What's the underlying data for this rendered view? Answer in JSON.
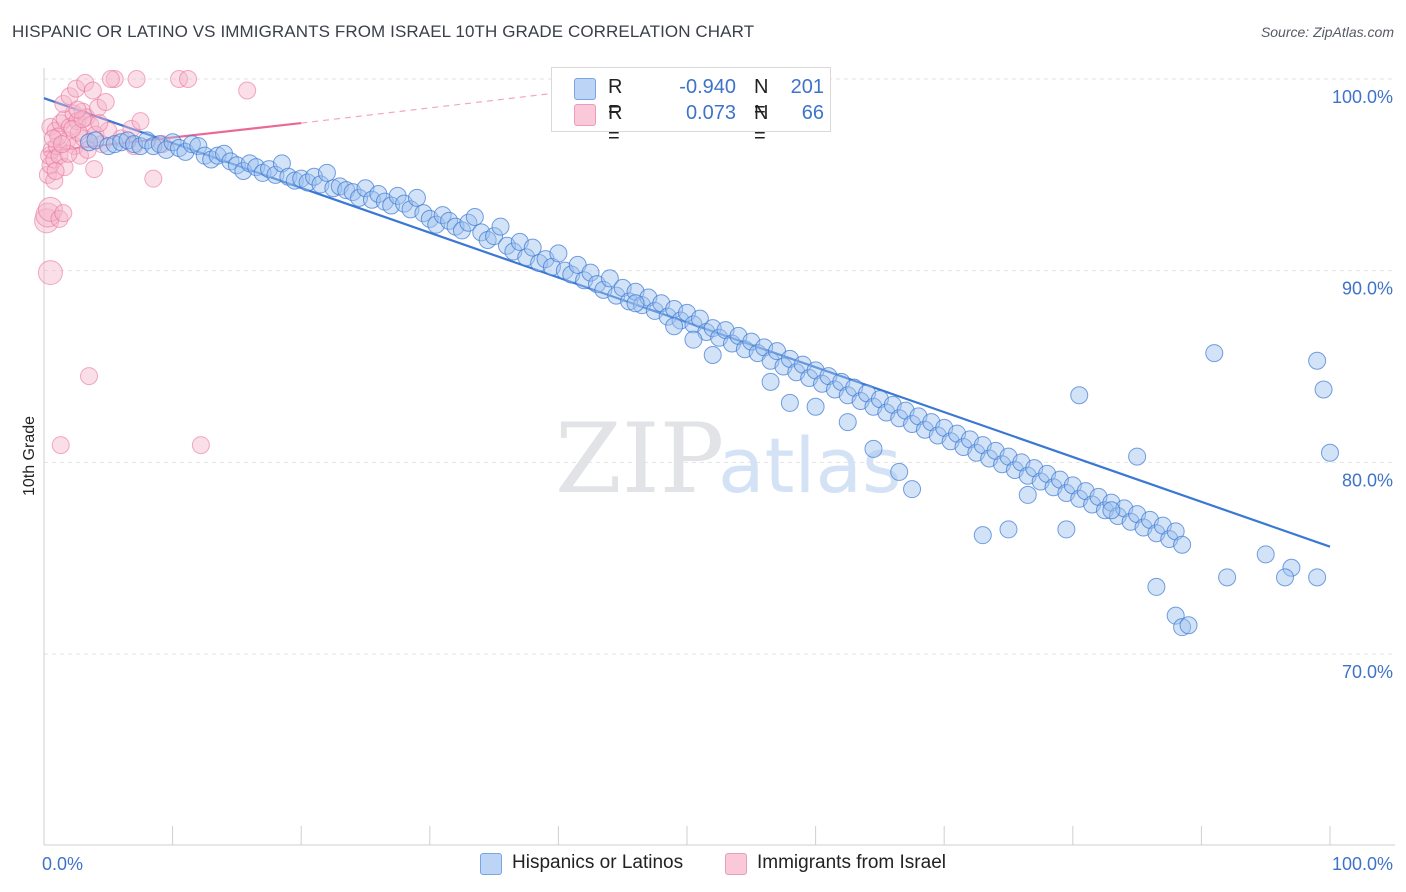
{
  "title": "HISPANIC OR LATINO VS IMMIGRANTS FROM ISRAEL 10TH GRADE CORRELATION CHART",
  "source": "Source: ZipAtlas.com",
  "watermark": {
    "zip": "ZIP",
    "atlas": "atlas"
  },
  "legend": {
    "r_label": "R =",
    "n_label": "N =",
    "rows": [
      {
        "name": "Hispanics or Latinos",
        "r": "-0.940",
        "n": "201",
        "color": "#8fb4ec"
      },
      {
        "name": "Immigrants from Israel",
        "r": "0.073",
        "n": "66",
        "color": "#f2a3be"
      }
    ]
  },
  "colors": {
    "blue": "#3a78d4",
    "blue_fill": "#9dc0ee",
    "pink": "#ea6a96",
    "pink_fill": "#f4b6cb",
    "tick_text": "#3f73c9"
  },
  "chart_data": {
    "type": "scatter",
    "title": "HISPANIC OR LATINO VS IMMIGRANTS FROM ISRAEL 10TH GRADE CORRELATION CHART",
    "xlabel": "",
    "ylabel": "10th Grade",
    "xlim": [
      0,
      100
    ],
    "ylim": [
      60,
      100
    ],
    "x_tick_labels": [
      "0.0%",
      "100.0%"
    ],
    "y_ticks": [
      70,
      80,
      90,
      100
    ],
    "y_tick_labels": [
      "70.0%",
      "80.0%",
      "90.0%",
      "100.0%"
    ],
    "grid": true,
    "legend_position": "top-center",
    "series": [
      {
        "name": "Hispanics or Latinos",
        "color": "#3a78d4",
        "r": -0.94,
        "n": 201,
        "trendline": {
          "x": [
            0,
            100
          ],
          "y": [
            99.0,
            75.6
          ]
        },
        "points": [
          [
            3.5,
            96.7
          ],
          [
            4,
            96.8
          ],
          [
            5,
            96.5
          ],
          [
            5.5,
            96.6
          ],
          [
            6,
            96.7
          ],
          [
            6.5,
            96.8
          ],
          [
            7,
            96.6
          ],
          [
            7.5,
            96.5
          ],
          [
            8,
            96.8
          ],
          [
            8.5,
            96.5
          ],
          [
            9,
            96.6
          ],
          [
            9.5,
            96.3
          ],
          [
            10,
            96.7
          ],
          [
            10.5,
            96.4
          ],
          [
            11,
            96.2
          ],
          [
            11.5,
            96.6
          ],
          [
            12,
            96.5
          ],
          [
            12.5,
            96.0
          ],
          [
            13,
            95.8
          ],
          [
            13.5,
            96.0
          ],
          [
            14,
            96.1
          ],
          [
            14.5,
            95.7
          ],
          [
            15,
            95.5
          ],
          [
            15.5,
            95.2
          ],
          [
            16,
            95.6
          ],
          [
            16.5,
            95.4
          ],
          [
            17,
            95.1
          ],
          [
            17.5,
            95.3
          ],
          [
            18,
            95.0
          ],
          [
            18.5,
            95.6
          ],
          [
            19,
            94.9
          ],
          [
            19.5,
            94.7
          ],
          [
            20,
            94.8
          ],
          [
            20.5,
            94.6
          ],
          [
            21,
            94.9
          ],
          [
            21.5,
            94.5
          ],
          [
            22,
            95.1
          ],
          [
            22.5,
            94.3
          ],
          [
            23,
            94.4
          ],
          [
            23.5,
            94.2
          ],
          [
            24,
            94.1
          ],
          [
            24.5,
            93.8
          ],
          [
            25,
            94.3
          ],
          [
            25.5,
            93.7
          ],
          [
            26,
            94.0
          ],
          [
            26.5,
            93.6
          ],
          [
            27,
            93.4
          ],
          [
            27.5,
            93.9
          ],
          [
            28,
            93.5
          ],
          [
            28.5,
            93.2
          ],
          [
            29,
            93.8
          ],
          [
            29.5,
            93.0
          ],
          [
            30,
            92.7
          ],
          [
            30.5,
            92.4
          ],
          [
            31,
            92.9
          ],
          [
            31.5,
            92.6
          ],
          [
            32,
            92.3
          ],
          [
            32.5,
            92.1
          ],
          [
            33,
            92.5
          ],
          [
            33.5,
            92.8
          ],
          [
            34,
            92.0
          ],
          [
            34.5,
            91.6
          ],
          [
            35,
            91.8
          ],
          [
            35.5,
            92.3
          ],
          [
            36,
            91.3
          ],
          [
            36.5,
            91.0
          ],
          [
            37,
            91.5
          ],
          [
            37.5,
            90.7
          ],
          [
            38,
            91.2
          ],
          [
            38.5,
            90.4
          ],
          [
            39,
            90.6
          ],
          [
            39.5,
            90.2
          ],
          [
            40,
            90.9
          ],
          [
            40.5,
            90.0
          ],
          [
            41,
            89.8
          ],
          [
            41.5,
            90.3
          ],
          [
            42,
            89.5
          ],
          [
            42.5,
            89.9
          ],
          [
            43,
            89.3
          ],
          [
            43.5,
            89.0
          ],
          [
            44,
            89.6
          ],
          [
            44.5,
            88.7
          ],
          [
            45,
            89.1
          ],
          [
            45.5,
            88.4
          ],
          [
            46,
            88.9
          ],
          [
            46.5,
            88.2
          ],
          [
            47,
            88.6
          ],
          [
            47.5,
            87.9
          ],
          [
            48,
            88.3
          ],
          [
            48.5,
            87.6
          ],
          [
            49,
            88.0
          ],
          [
            49.5,
            87.4
          ],
          [
            50,
            87.8
          ],
          [
            50.5,
            87.2
          ],
          [
            51,
            87.5
          ],
          [
            51.5,
            86.8
          ],
          [
            52,
            87.0
          ],
          [
            52.5,
            86.5
          ],
          [
            53,
            86.9
          ],
          [
            53.5,
            86.2
          ],
          [
            54,
            86.6
          ],
          [
            54.5,
            85.9
          ],
          [
            55,
            86.3
          ],
          [
            55.5,
            85.7
          ],
          [
            56,
            86.0
          ],
          [
            56.5,
            85.3
          ],
          [
            57,
            85.8
          ],
          [
            57.5,
            85.0
          ],
          [
            58,
            85.4
          ],
          [
            58.5,
            84.7
          ],
          [
            59,
            85.1
          ],
          [
            59.5,
            84.4
          ],
          [
            60,
            84.8
          ],
          [
            60.5,
            84.1
          ],
          [
            61,
            84.5
          ],
          [
            61.5,
            83.8
          ],
          [
            62,
            84.2
          ],
          [
            62.5,
            83.5
          ],
          [
            63,
            83.9
          ],
          [
            63.5,
            83.2
          ],
          [
            64,
            83.6
          ],
          [
            64.5,
            82.9
          ],
          [
            65,
            83.3
          ],
          [
            65.5,
            82.6
          ],
          [
            66,
            83.0
          ],
          [
            66.5,
            82.3
          ],
          [
            67,
            82.7
          ],
          [
            67.5,
            82.0
          ],
          [
            68,
            82.4
          ],
          [
            68.5,
            81.7
          ],
          [
            69,
            82.1
          ],
          [
            69.5,
            81.4
          ],
          [
            70,
            81.8
          ],
          [
            70.5,
            81.1
          ],
          [
            71,
            81.5
          ],
          [
            71.5,
            80.8
          ],
          [
            72,
            81.2
          ],
          [
            72.5,
            80.5
          ],
          [
            73,
            80.9
          ],
          [
            73.5,
            80.2
          ],
          [
            74,
            80.6
          ],
          [
            74.5,
            79.9
          ],
          [
            75,
            80.3
          ],
          [
            75.5,
            79.6
          ],
          [
            76,
            80.0
          ],
          [
            76.5,
            79.3
          ],
          [
            77,
            79.7
          ],
          [
            77.5,
            79.0
          ],
          [
            78,
            79.4
          ],
          [
            78.5,
            78.7
          ],
          [
            79,
            79.1
          ],
          [
            79.5,
            78.4
          ],
          [
            80,
            78.8
          ],
          [
            80.5,
            78.1
          ],
          [
            81,
            78.5
          ],
          [
            81.5,
            77.8
          ],
          [
            82,
            78.2
          ],
          [
            82.5,
            77.5
          ],
          [
            83,
            77.9
          ],
          [
            83.5,
            77.2
          ],
          [
            84,
            77.6
          ],
          [
            84.5,
            76.9
          ],
          [
            85,
            77.3
          ],
          [
            85.5,
            76.6
          ],
          [
            86,
            77.0
          ],
          [
            86.5,
            76.3
          ],
          [
            87,
            76.7
          ],
          [
            87.5,
            76.0
          ],
          [
            88,
            76.4
          ],
          [
            88.5,
            75.7
          ],
          [
            46,
            88.3
          ],
          [
            49,
            87.1
          ],
          [
            50.5,
            86.4
          ],
          [
            52,
            85.6
          ],
          [
            56.5,
            84.2
          ],
          [
            58,
            83.1
          ],
          [
            60,
            82.9
          ],
          [
            62.5,
            82.1
          ],
          [
            64.5,
            80.7
          ],
          [
            66.5,
            79.5
          ],
          [
            67.5,
            78.6
          ],
          [
            73,
            76.2
          ],
          [
            75,
            76.5
          ],
          [
            76.5,
            78.3
          ],
          [
            79.5,
            76.5
          ],
          [
            80.5,
            83.5
          ],
          [
            83,
            77.5
          ],
          [
            85,
            80.3
          ],
          [
            86.5,
            73.5
          ],
          [
            88,
            72.0
          ],
          [
            88.5,
            71.4
          ],
          [
            91,
            85.7
          ],
          [
            92,
            74.0
          ],
          [
            95,
            75.2
          ],
          [
            97,
            74.5
          ],
          [
            99,
            74.0
          ],
          [
            100,
            80.5
          ],
          [
            99.5,
            83.8
          ],
          [
            99,
            85.3
          ],
          [
            96.5,
            74.0
          ],
          [
            89,
            71.5
          ]
        ]
      },
      {
        "name": "Immigrants from Israel",
        "color": "#ea6a96",
        "r": 0.073,
        "n": 66,
        "trendline": {
          "x": [
            0,
            20
          ],
          "y": [
            96.2,
            97.7
          ],
          "dashed_extension_to": [
            44,
            99.6
          ]
        },
        "points": [
          [
            0.2,
            92.6
          ],
          [
            0.3,
            92.9
          ],
          [
            0.5,
            93.2
          ],
          [
            0.3,
            95.0
          ],
          [
            0.5,
            95.5
          ],
          [
            0.4,
            96.0
          ],
          [
            0.6,
            96.3
          ],
          [
            0.8,
            95.8
          ],
          [
            1,
            96.5
          ],
          [
            1.2,
            96.0
          ],
          [
            0.5,
            97.5
          ],
          [
            0.9,
            97.3
          ],
          [
            1.3,
            97.7
          ],
          [
            1.6,
            97.9
          ],
          [
            2,
            97.5
          ],
          [
            2.3,
            98.2
          ],
          [
            2.6,
            97.8
          ],
          [
            3,
            98.3
          ],
          [
            3.3,
            98.0
          ],
          [
            3.6,
            97.6
          ],
          [
            1.8,
            96.8
          ],
          [
            2.4,
            96.5
          ],
          [
            2.8,
            96.0
          ],
          [
            3.1,
            96.9
          ],
          [
            4,
            97.1
          ],
          [
            4.5,
            96.6
          ],
          [
            5,
            97.3
          ],
          [
            6,
            96.9
          ],
          [
            6.8,
            97.4
          ],
          [
            7,
            96.5
          ],
          [
            1.5,
            98.7
          ],
          [
            2,
            99.1
          ],
          [
            2.5,
            99.5
          ],
          [
            3.2,
            99.8
          ],
          [
            3.8,
            99.4
          ],
          [
            4.2,
            98.5
          ],
          [
            5.5,
            100
          ],
          [
            7.2,
            100
          ],
          [
            10.5,
            100
          ],
          [
            11.2,
            100
          ],
          [
            1.2,
            92.7
          ],
          [
            1.5,
            93.0
          ],
          [
            0.5,
            89.9
          ],
          [
            3.5,
            84.5
          ],
          [
            1.3,
            80.9
          ],
          [
            12.2,
            80.9
          ],
          [
            8.5,
            94.8
          ],
          [
            3.9,
            95.3
          ],
          [
            0.8,
            94.7
          ],
          [
            1.6,
            95.4
          ],
          [
            2.7,
            97.2
          ],
          [
            3.4,
            96.3
          ],
          [
            4.8,
            98.8
          ],
          [
            7.5,
            97.8
          ],
          [
            9.2,
            96.6
          ],
          [
            1.1,
            97.0
          ],
          [
            2.2,
            97.4
          ],
          [
            0.7,
            96.9
          ],
          [
            1.9,
            96.1
          ],
          [
            15.8,
            99.4
          ],
          [
            5.2,
            100
          ],
          [
            3.0,
            97.9
          ],
          [
            2.6,
            98.4
          ],
          [
            1.4,
            96.6
          ],
          [
            0.9,
            95.2
          ],
          [
            4.3,
            97.7
          ]
        ]
      }
    ]
  }
}
